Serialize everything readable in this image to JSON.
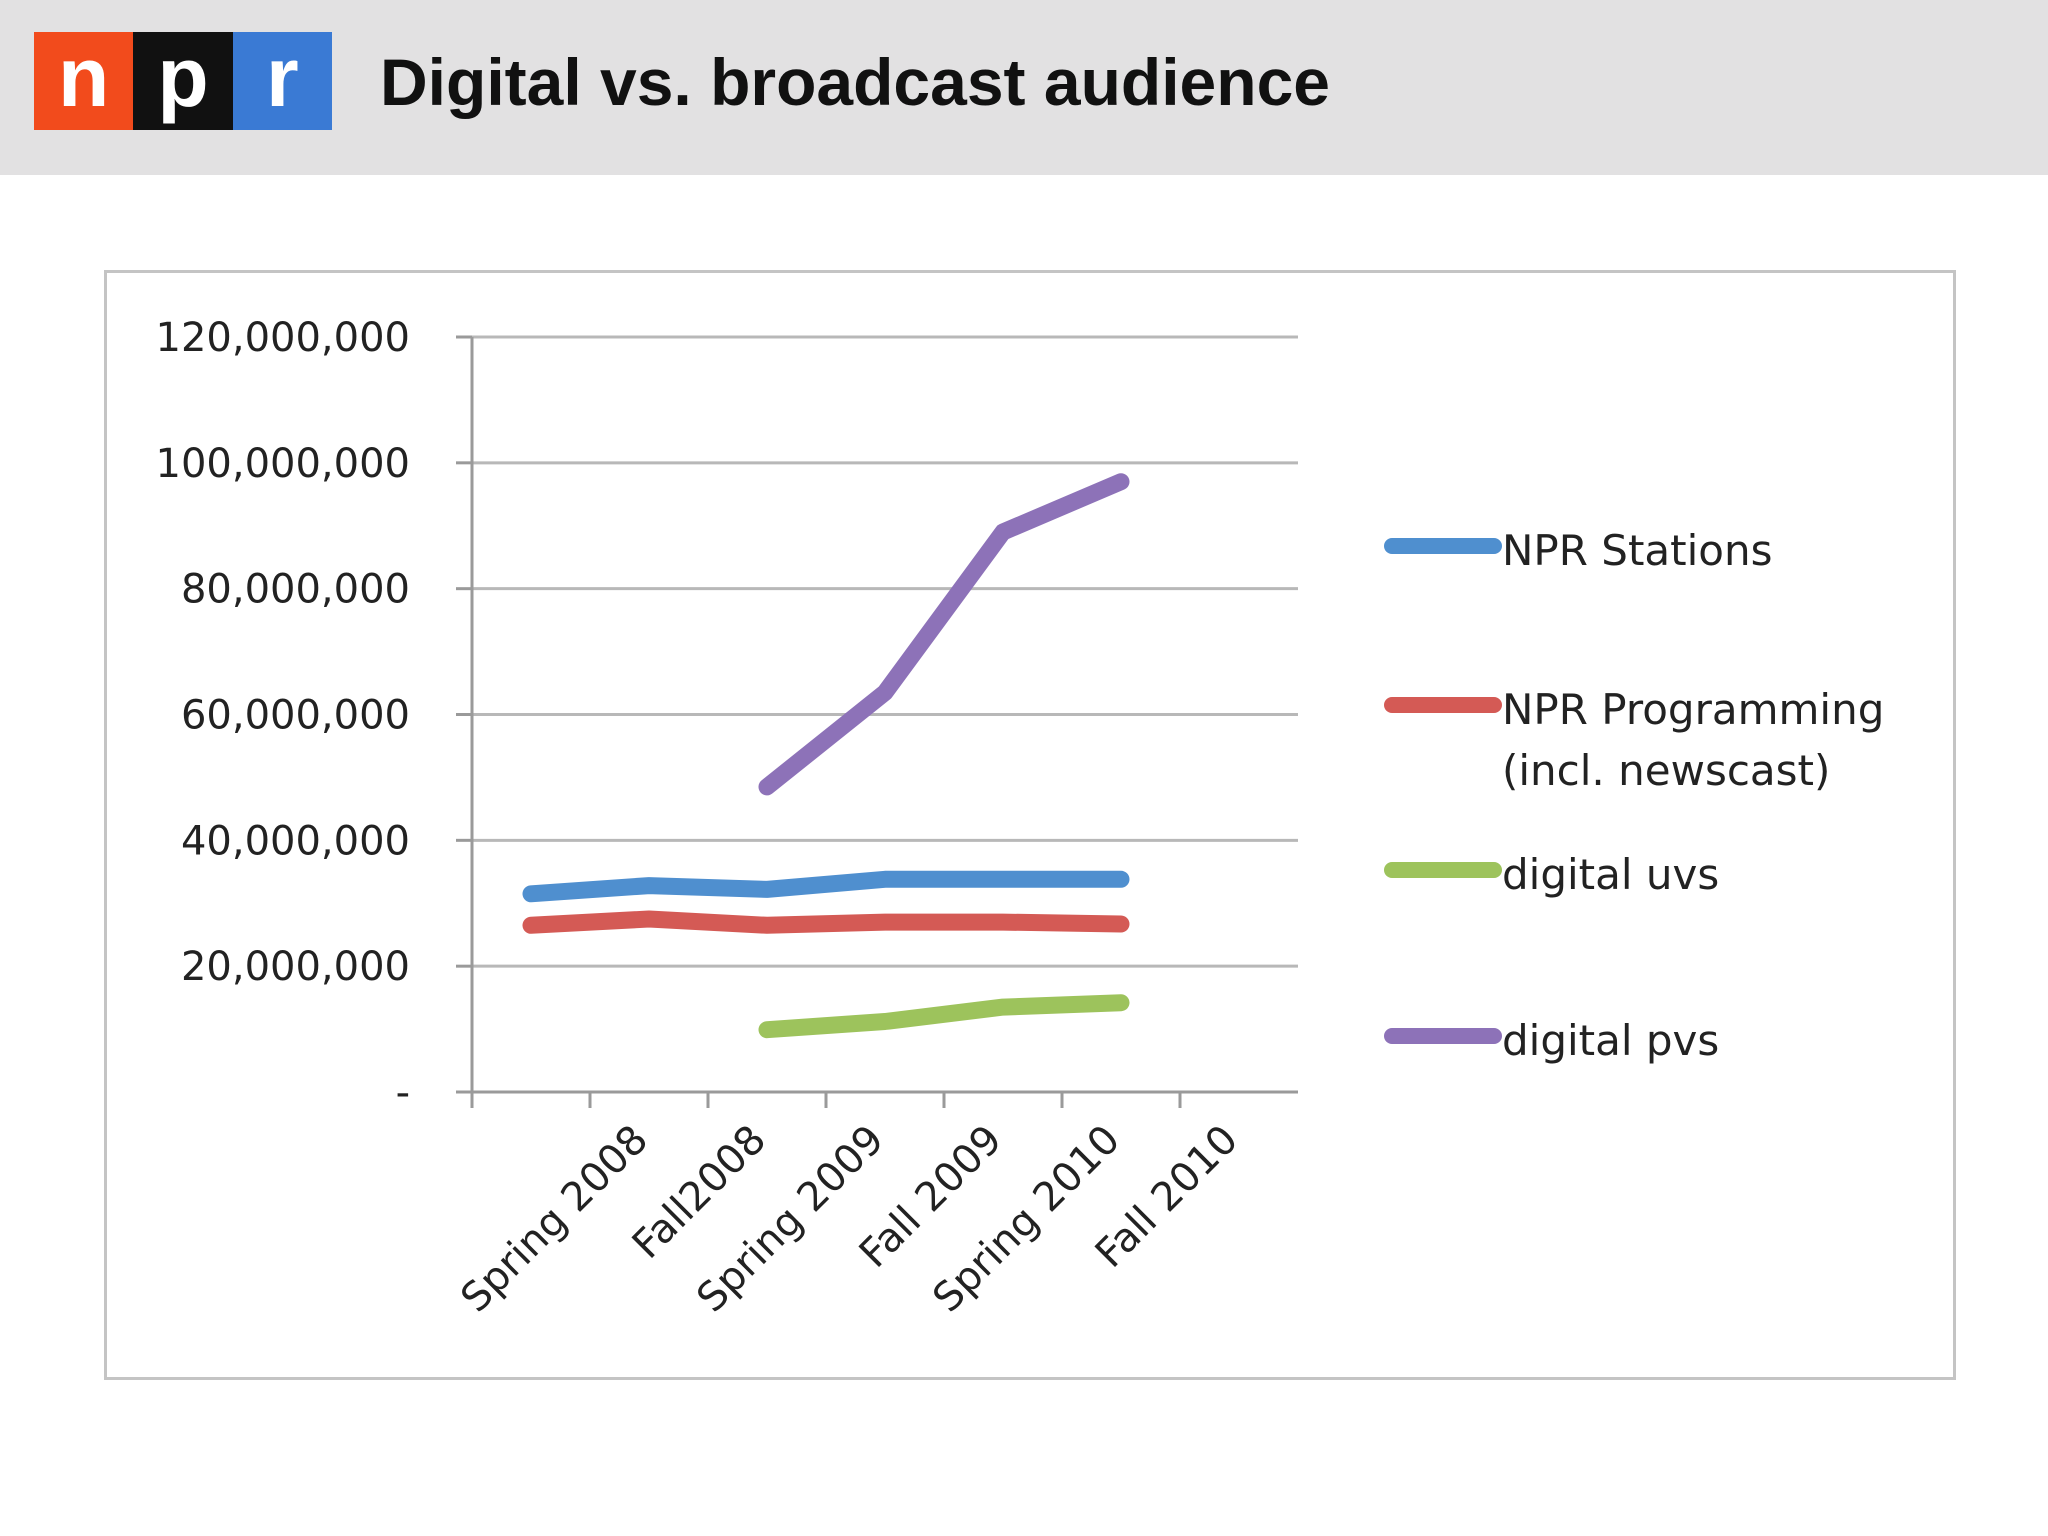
{
  "header": {
    "logo": {
      "letters": [
        "n",
        "p",
        "r"
      ],
      "colors": [
        "#f24b1c",
        "#111111",
        "#3a7ad4"
      ]
    },
    "title": "Digital vs. broadcast audience",
    "background": "#e2e1e2"
  },
  "chart_data": {
    "type": "line",
    "title": "",
    "xlabel": "",
    "ylabel": "",
    "categories": [
      "Spring 2008",
      "Fall2008",
      "Spring 2009",
      "Fall 2009",
      "Spring 2010",
      "Fall 2010"
    ],
    "x_positions": [
      0,
      1,
      2,
      3,
      4,
      5,
      6
    ],
    "ylim": [
      0,
      120000000
    ],
    "yticks": [
      0,
      20000000,
      40000000,
      60000000,
      80000000,
      100000000,
      120000000
    ],
    "ytick_labels": [
      "-",
      "20,000,000",
      "40,000,000",
      "60,000,000",
      "80,000,000",
      "100,000,000",
      "120,000,000"
    ],
    "grid": true,
    "legend_position": "right",
    "series": [
      {
        "name": "NPR Stations",
        "color": "#4f8fcf",
        "x": [
          0.5,
          1.5,
          2.5,
          3.5,
          4.5,
          5.5
        ],
        "values": [
          31500000,
          32800000,
          32200000,
          33800000,
          33800000,
          33800000
        ]
      },
      {
        "name": "NPR Programming (incl. newscast)",
        "label_lines": [
          "NPR Programming",
          "(incl. newscast)"
        ],
        "color": "#d45a55",
        "x": [
          0.5,
          1.5,
          2.5,
          3.5,
          4.5,
          5.5
        ],
        "values": [
          26500000,
          27500000,
          26500000,
          27000000,
          27000000,
          26700000
        ]
      },
      {
        "name": "digital uvs",
        "color": "#9dc35c",
        "x": [
          2.5,
          3.5,
          4.5,
          5.5
        ],
        "values": [
          9900000,
          11200000,
          13500000,
          14200000
        ]
      },
      {
        "name": "digital pvs",
        "color": "#8d72b8",
        "x": [
          2.5,
          3.5,
          4.5,
          5.5
        ],
        "values": [
          48500000,
          63500000,
          89000000,
          97000000
        ]
      }
    ]
  }
}
